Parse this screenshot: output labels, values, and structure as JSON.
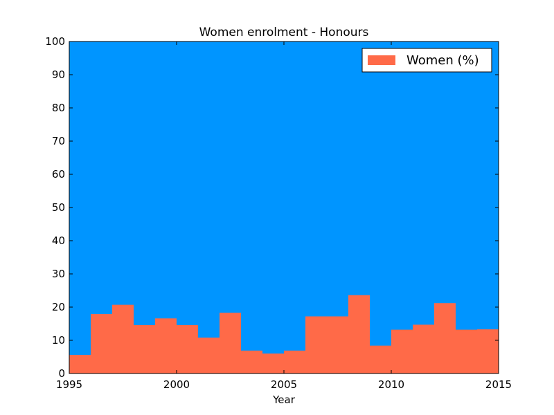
{
  "chart_data": {
    "type": "area",
    "title": "Women enrolment - Honours",
    "xlabel": "Year",
    "ylabel": "",
    "xlim": [
      1995,
      2015
    ],
    "ylim": [
      0,
      100
    ],
    "xticks": [
      1995,
      2000,
      2005,
      2010,
      2015
    ],
    "yticks": [
      0,
      10,
      20,
      30,
      40,
      50,
      60,
      70,
      80,
      90,
      100
    ],
    "step": "post",
    "background_fill_color": "#0095ff",
    "grid": false,
    "legend_position": "top-right",
    "series": [
      {
        "name": "Women (%)",
        "color": "#ff6a48",
        "x": [
          1995,
          1996,
          1997,
          1998,
          1999,
          2000,
          2001,
          2002,
          2003,
          2004,
          2005,
          2006,
          2007,
          2008,
          2009,
          2010,
          2011,
          2012,
          2013,
          2014
        ],
        "values": [
          5.6,
          17.9,
          20.7,
          14.6,
          16.6,
          14.6,
          10.8,
          18.3,
          6.9,
          6.0,
          6.9,
          17.2,
          17.2,
          23.6,
          8.4,
          13.2,
          14.7,
          21.2,
          13.2,
          13.3
        ]
      }
    ]
  }
}
